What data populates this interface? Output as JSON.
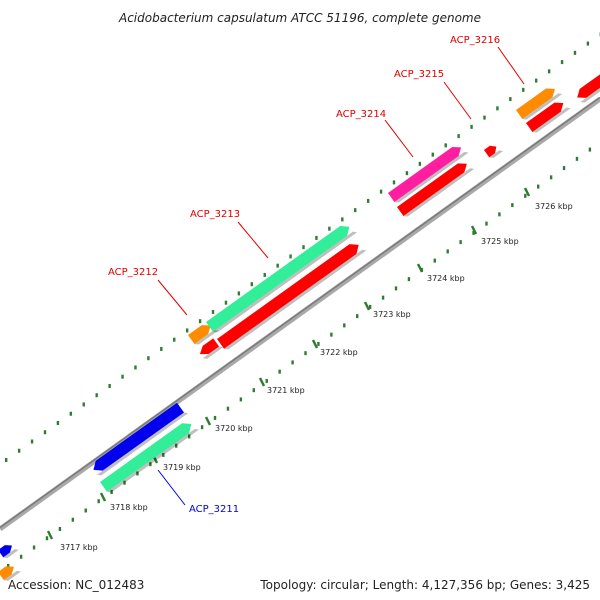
{
  "title": "Acidobacterium capsulatum ATCC 51196, complete genome",
  "footer": {
    "accession": "Accession: NC_012483",
    "summary": "Topology: circular; Length: 4,127,356 bp; Genes: 3,425"
  },
  "colors": {
    "backbone": "#8c8c8c",
    "tick": "#2e7d32",
    "label_red": "#e00000",
    "label_blue": "#0000dd",
    "orange": "#ff8c00",
    "teal": "#33ee99",
    "red": "#ff0000",
    "magenta": "#ff1ea0",
    "blue": "#0000ee"
  },
  "scale_ticks": [
    {
      "label": "3717 kbp"
    },
    {
      "label": "3718 kbp"
    },
    {
      "label": "3719 kbp"
    },
    {
      "label": "3720 kbp"
    },
    {
      "label": "3721 kbp"
    },
    {
      "label": "3722 kbp"
    },
    {
      "label": "3723 kbp"
    },
    {
      "label": "3724 kbp"
    },
    {
      "label": "3725 kbp"
    },
    {
      "label": "3726 kbp"
    }
  ],
  "gene_labels": [
    {
      "name": "ACP_3211",
      "color": "blue"
    },
    {
      "name": "ACP_3212",
      "color": "red"
    },
    {
      "name": "ACP_3213",
      "color": "red"
    },
    {
      "name": "ACP_3214",
      "color": "red"
    },
    {
      "name": "ACP_3215",
      "color": "red"
    },
    {
      "name": "ACP_3216",
      "color": "red"
    }
  ]
}
